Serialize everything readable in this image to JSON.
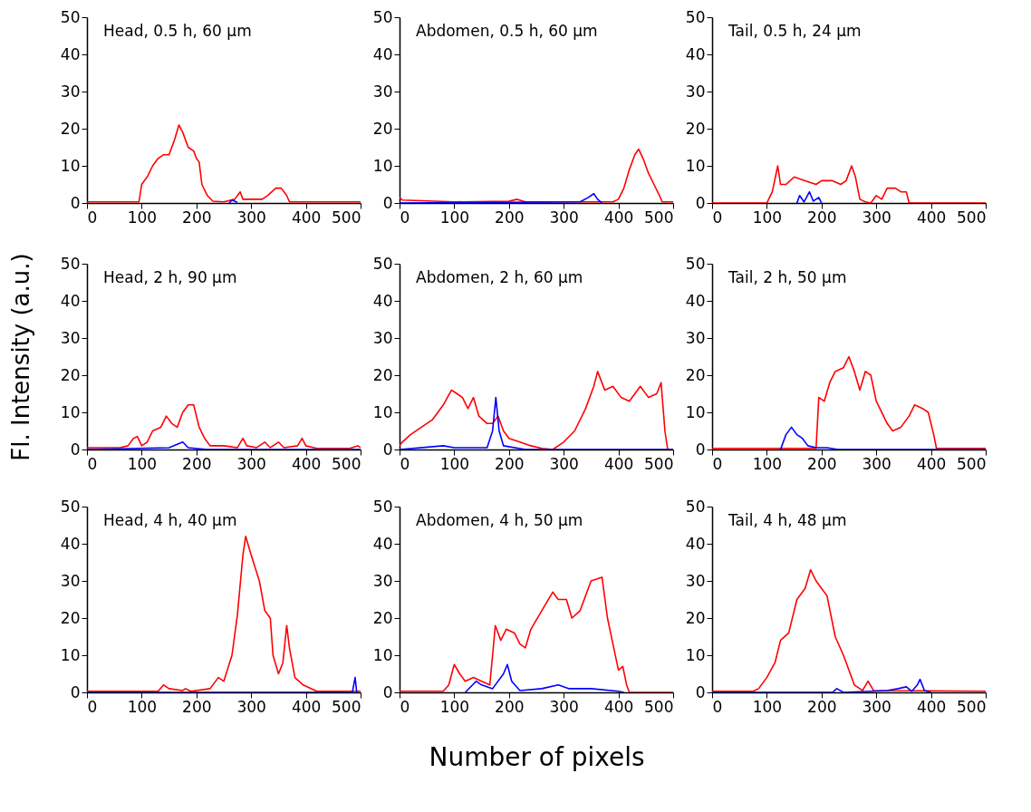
{
  "chart_data": [
    {
      "type": "line",
      "title": "Head, 0.5 h, 60 µm",
      "xlim": [
        0,
        500
      ],
      "ylim": [
        0,
        50
      ],
      "xticks": [
        0,
        100,
        200,
        300,
        400,
        500
      ],
      "yticks": [
        0,
        10,
        20,
        30,
        40,
        50
      ],
      "series": [
        {
          "color": "#ff0000",
          "x": [
            0,
            95,
            100,
            110,
            120,
            130,
            140,
            150,
            160,
            168,
            175,
            185,
            195,
            200,
            205,
            210,
            220,
            230,
            250,
            270,
            280,
            285,
            300,
            320,
            330,
            345,
            355,
            365,
            370,
            500
          ],
          "values": [
            0.3,
            0.3,
            5,
            7,
            10,
            12,
            13,
            13,
            17,
            21,
            19,
            15,
            14,
            12,
            11,
            5,
            2,
            0.5,
            0.3,
            1,
            3,
            1,
            1,
            1,
            2,
            4,
            4,
            2,
            0.3,
            0.3
          ]
        },
        {
          "color": "#0000ff",
          "x": [
            260,
            265,
            275
          ],
          "values": [
            0,
            0.8,
            0.2
          ]
        }
      ]
    },
    {
      "type": "line",
      "title": "Abdomen, 0.5 h, 60 µm",
      "xlim": [
        0,
        500
      ],
      "ylim": [
        0,
        50
      ],
      "xticks": [
        0,
        100,
        200,
        300,
        400,
        500
      ],
      "yticks": [
        0,
        10,
        20,
        30,
        40,
        50
      ],
      "series": [
        {
          "color": "#ff0000",
          "x": [
            0,
            5,
            100,
            200,
            215,
            230,
            390,
            400,
            410,
            420,
            430,
            437,
            445,
            455,
            465,
            475,
            480,
            500
          ],
          "values": [
            1.5,
            0.8,
            0.3,
            0.5,
            1,
            0.3,
            0.3,
            1,
            4,
            9,
            13,
            14.5,
            12,
            8,
            5,
            2,
            0.3,
            0.3
          ]
        },
        {
          "color": "#0000ff",
          "x": [
            0,
            330,
            345,
            355,
            362,
            370
          ],
          "values": [
            0,
            0.3,
            1.5,
            2.5,
            1,
            0
          ]
        }
      ]
    },
    {
      "type": "line",
      "title": "Tail, 0.5 h, 24 µm",
      "xlim": [
        0,
        500
      ],
      "ylim": [
        0,
        50
      ],
      "xticks": [
        0,
        100,
        200,
        300,
        400,
        500
      ],
      "yticks": [
        0,
        10,
        20,
        30,
        40,
        50
      ],
      "series": [
        {
          "color": "#ff0000",
          "x": [
            0,
            100,
            110,
            120,
            125,
            135,
            150,
            170,
            190,
            200,
            220,
            235,
            245,
            255,
            262,
            270,
            280,
            290,
            300,
            310,
            320,
            335,
            345,
            355,
            360,
            500
          ],
          "values": [
            0,
            0,
            3,
            10,
            5,
            5,
            7,
            6,
            5,
            6,
            6,
            5,
            6,
            10,
            7,
            1,
            0.3,
            0,
            2,
            1,
            4,
            4,
            3,
            3,
            0,
            0
          ]
        },
        {
          "color": "#0000ff",
          "x": [
            155,
            160,
            168,
            178,
            185,
            195,
            200
          ],
          "values": [
            0,
            2,
            0.3,
            3,
            0.5,
            1.5,
            0
          ]
        }
      ]
    },
    {
      "type": "line",
      "title": "Head, 2 h, 90 µm",
      "ylabel": "Fl. Intensity (a.u.)",
      "xlim": [
        0,
        500
      ],
      "ylim": [
        0,
        50
      ],
      "xticks": [
        0,
        100,
        200,
        300,
        400,
        500
      ],
      "yticks": [
        0,
        10,
        20,
        30,
        40,
        50
      ],
      "series": [
        {
          "color": "#ff0000",
          "x": [
            0,
            60,
            75,
            85,
            92,
            100,
            110,
            120,
            135,
            145,
            155,
            165,
            175,
            185,
            195,
            205,
            215,
            225,
            250,
            275,
            285,
            292,
            310,
            325,
            335,
            350,
            360,
            385,
            393,
            400,
            420,
            480,
            495,
            500
          ],
          "values": [
            0.5,
            0.5,
            1,
            3,
            3.5,
            1,
            2,
            5,
            6,
            9,
            7,
            6,
            10,
            12,
            12,
            6,
            3,
            1,
            1,
            0.5,
            3,
            1,
            0.5,
            2,
            0.5,
            2,
            0.5,
            1,
            3,
            1,
            0.3,
            0.3,
            1,
            0.5
          ]
        },
        {
          "color": "#0000ff",
          "x": [
            0,
            150,
            175,
            185,
            220,
            500
          ],
          "values": [
            0,
            0.5,
            2,
            0.5,
            0,
            0
          ]
        }
      ]
    },
    {
      "type": "line",
      "title": "Abdomen, 2 h, 60 µm",
      "xlim": [
        0,
        500
      ],
      "ylim": [
        0,
        50
      ],
      "xticks": [
        0,
        100,
        200,
        300,
        400,
        500
      ],
      "yticks": [
        0,
        10,
        20,
        30,
        40,
        50
      ],
      "series": [
        {
          "color": "#ff0000",
          "x": [
            0,
            5,
            20,
            40,
            60,
            80,
            95,
            105,
            115,
            125,
            135,
            145,
            160,
            170,
            180,
            190,
            200,
            220,
            240,
            260,
            280,
            300,
            320,
            340,
            355,
            362,
            375,
            390,
            405,
            420,
            440,
            455,
            470,
            478,
            485,
            490,
            500
          ],
          "values": [
            1,
            2,
            4,
            6,
            8,
            12,
            16,
            15,
            14,
            11,
            14,
            9,
            7,
            7,
            9,
            5,
            3,
            2,
            1,
            0.3,
            0,
            2,
            5,
            11,
            17,
            21,
            16,
            17,
            14,
            13,
            17,
            14,
            15,
            18,
            5,
            0,
            0
          ]
        },
        {
          "color": "#0000ff",
          "x": [
            0,
            80,
            100,
            160,
            170,
            176,
            182,
            190,
            230,
            500
          ],
          "values": [
            0,
            1,
            0.5,
            0.5,
            5,
            14,
            5,
            1,
            0,
            0
          ]
        }
      ]
    },
    {
      "type": "line",
      "title": "Tail, 2 h, 50 µm",
      "xlim": [
        0,
        500
      ],
      "ylim": [
        0,
        50
      ],
      "xticks": [
        0,
        100,
        200,
        300,
        400,
        500
      ],
      "yticks": [
        0,
        10,
        20,
        30,
        40,
        50
      ],
      "series": [
        {
          "color": "#ff0000",
          "x": [
            0,
            190,
            195,
            205,
            215,
            225,
            240,
            250,
            260,
            270,
            280,
            290,
            300,
            320,
            330,
            345,
            360,
            370,
            385,
            395,
            405,
            410,
            500
          ],
          "values": [
            0.3,
            0.3,
            14,
            13,
            18,
            21,
            22,
            25,
            21,
            16,
            21,
            20,
            13,
            7,
            5,
            6,
            9,
            12,
            11,
            10,
            4,
            0.3,
            0.3
          ]
        },
        {
          "color": "#0000ff",
          "x": [
            125,
            135,
            145,
            155,
            165,
            175,
            190,
            210,
            230,
            500
          ],
          "values": [
            0,
            4,
            6,
            4,
            3,
            1,
            0.5,
            0.5,
            0,
            0
          ]
        }
      ]
    },
    {
      "type": "line",
      "title": "Head, 4 h, 40 µm",
      "xlim": [
        0,
        500
      ],
      "ylim": [
        0,
        50
      ],
      "xticks": [
        0,
        100,
        200,
        300,
        400,
        500
      ],
      "yticks": [
        0,
        10,
        20,
        30,
        40,
        50
      ],
      "series": [
        {
          "color": "#ff0000",
          "x": [
            0,
            130,
            140,
            150,
            175,
            180,
            190,
            225,
            240,
            250,
            265,
            275,
            285,
            290,
            300,
            315,
            325,
            335,
            340,
            350,
            358,
            365,
            370,
            380,
            395,
            410,
            420,
            500
          ],
          "values": [
            0.3,
            0.3,
            2,
            1,
            0.5,
            1,
            0.3,
            1,
            4,
            3,
            10,
            21,
            37,
            42,
            37,
            30,
            22,
            20,
            10,
            5,
            8,
            18,
            12,
            4,
            2,
            1,
            0.3,
            0.3
          ]
        },
        {
          "color": "#0000ff",
          "x": [
            0,
            485,
            490,
            493
          ],
          "values": [
            0,
            0,
            4,
            0
          ]
        }
      ]
    },
    {
      "type": "line",
      "title": "Abdomen, 4 h, 50 µm",
      "xlabel": "Number of pixels",
      "xlim": [
        0,
        500
      ],
      "ylim": [
        0,
        50
      ],
      "xticks": [
        0,
        100,
        200,
        300,
        400,
        500
      ],
      "yticks": [
        0,
        10,
        20,
        30,
        40,
        50
      ],
      "series": [
        {
          "color": "#ff0000",
          "x": [
            0,
            80,
            90,
            100,
            110,
            120,
            135,
            150,
            165,
            175,
            185,
            195,
            210,
            220,
            230,
            240,
            260,
            280,
            290,
            305,
            315,
            330,
            350,
            370,
            380,
            390,
            400,
            408,
            415,
            420,
            500
          ],
          "values": [
            0.3,
            0.3,
            2,
            7.5,
            5,
            3,
            4,
            3,
            2,
            18,
            14,
            17,
            16,
            13,
            12,
            17,
            22,
            27,
            25,
            25,
            20,
            22,
            30,
            31,
            20,
            13,
            6,
            7,
            2,
            0,
            0
          ]
        },
        {
          "color": "#0000ff",
          "x": [
            120,
            140,
            150,
            170,
            190,
            197,
            205,
            220,
            260,
            290,
            310,
            350,
            400,
            410
          ],
          "values": [
            0,
            3,
            2,
            1,
            5,
            7.5,
            3,
            0.5,
            1,
            2,
            1,
            1,
            0.3,
            0
          ]
        }
      ]
    },
    {
      "type": "line",
      "title": "Tail, 4 h, 48 µm",
      "xlim": [
        0,
        500
      ],
      "ylim": [
        0,
        50
      ],
      "xticks": [
        0,
        100,
        200,
        300,
        400,
        500
      ],
      "yticks": [
        0,
        10,
        20,
        30,
        40,
        50
      ],
      "series": [
        {
          "color": "#ff0000",
          "x": [
            0,
            75,
            85,
            100,
            115,
            125,
            140,
            155,
            170,
            180,
            190,
            200,
            210,
            225,
            240,
            260,
            275,
            285,
            295,
            500
          ],
          "values": [
            0.3,
            0.3,
            1,
            4,
            8,
            14,
            16,
            25,
            28,
            33,
            30,
            28,
            26,
            15,
            10,
            2,
            0.5,
            3,
            0.5,
            0.3
          ]
        },
        {
          "color": "#0000ff",
          "x": [
            0,
            220,
            228,
            240,
            320,
            340,
            355,
            365,
            375,
            380,
            388,
            400
          ],
          "values": [
            0,
            0,
            1,
            0,
            0.5,
            1,
            1.5,
            0.3,
            2,
            3.5,
            0.5,
            0
          ]
        }
      ]
    }
  ]
}
